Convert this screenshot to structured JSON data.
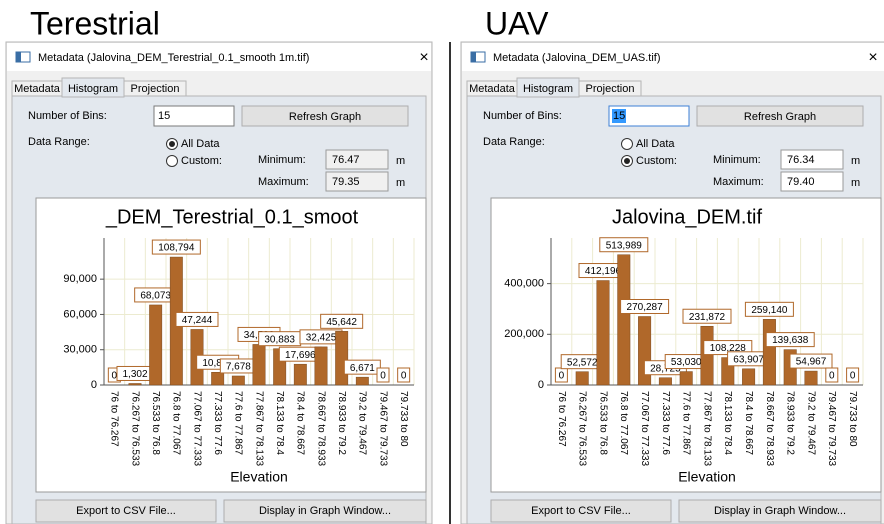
{
  "panels": [
    {
      "heading": "Terestrial",
      "window_title": "Metadata (Jalovina_DEM_Terestrial_0.1_smooth 1m.tif)",
      "close": "×",
      "tabs": [
        "Metadata",
        "Histogram",
        "Projection"
      ],
      "active_tab": 1,
      "bins_label": "Number of Bins:",
      "bins": "15",
      "refresh": "Refresh Graph",
      "range_label": "Data Range:",
      "range_options": [
        "All Data",
        "Custom:"
      ],
      "range_selected": 0,
      "minimum_label": "Minimum:",
      "minimum": "76.47",
      "maximum_label": "Maximum:",
      "maximum": "79.35",
      "unit": "m",
      "chart_data": {
        "type": "bar",
        "title": "_DEM_Terestrial_0.1_smoot",
        "xlabel": "Elevation",
        "color": "#b0682a",
        "categories": [
          "76 to 76.267",
          "76.267 to 76.533",
          "76.533 to 76.8",
          "76.8 to 77.067",
          "77.067 to 77.333",
          "77.333 to 77.6",
          "77.6 to 77.867",
          "77.867 to 78.133",
          "78.133 to 78.4",
          "78.4 to 78.667",
          "78.667 to 78.933",
          "78.933 to 79.2",
          "79.2 to 79.467",
          "79.467 to 79.733",
          "79.733 to 80"
        ],
        "values": [
          0,
          1302,
          68073,
          108794,
          47244,
          10850,
          7678,
          34500,
          30883,
          17696,
          32425,
          45642,
          6671,
          0,
          0
        ],
        "value_labels": [
          "0",
          "1,302",
          "68,073",
          "108,794",
          "47,244",
          "10,850",
          "7,678",
          "34,500",
          "30,883",
          "17,696",
          "32,425",
          "45,642",
          "6,671",
          "0",
          "0"
        ],
        "ylim": [
          0,
          125000
        ],
        "yticks": [
          0,
          {
            "value": 30000,
            "label": "30,000"
          },
          {
            "value": 60000,
            "label": "60,000"
          },
          {
            "value": 90000,
            "label": "90,000"
          }
        ],
        "grid": true
      },
      "buttons": [
        "Export to CSV File...",
        "Display in Graph Window..."
      ]
    },
    {
      "heading": "UAV",
      "window_title": "Metadata (Jalovina_DEM_UAS.tif)",
      "close": "×",
      "tabs": [
        "Metadata",
        "Histogram",
        "Projection"
      ],
      "active_tab": 1,
      "bins_label": "Number of Bins:",
      "bins": "15",
      "refresh": "Refresh Graph",
      "range_label": "Data Range:",
      "range_options": [
        "All Data",
        "Custom:"
      ],
      "range_selected": 1,
      "minimum_label": "Minimum:",
      "minimum": "76.34",
      "maximum_label": "Maximum:",
      "maximum": "79.40",
      "unit": "m",
      "chart_data": {
        "type": "bar",
        "title": "Jalovina_DEM.tif",
        "xlabel": "Elevation",
        "color": "#b0682a",
        "categories": [
          "76 to 76.267",
          "76.267 to 76.533",
          "76.533 to 76.8",
          "76.8 to 77.067",
          "77.067 to 77.333",
          "77.333 to 77.6",
          "77.6 to 77.867",
          "77.867 to 78.133",
          "78.133 to 78.4",
          "78.4 to 78.667",
          "78.667 to 78.933",
          "78.933 to 79.2",
          "79.2 to 79.467",
          "79.467 to 79.733",
          "79.733 to 80"
        ],
        "values": [
          0,
          52572,
          412196,
          513989,
          270287,
          28725,
          53030,
          231872,
          108228,
          63907,
          259140,
          139638,
          54967,
          0,
          0
        ],
        "value_labels": [
          "0",
          "52,572",
          "412,196",
          "513,989",
          "270,287",
          "28,725",
          "53,030",
          "231,872",
          "108,228",
          "63,907",
          "259,140",
          "139,638",
          "54,967",
          "0",
          "0"
        ],
        "ylim": [
          0,
          580000
        ],
        "yticks": [
          0,
          {
            "value": 200000,
            "label": "200,000"
          },
          {
            "value": 400000,
            "label": "400,000"
          }
        ],
        "grid": true
      },
      "buttons": [
        "Export to CSV File...",
        "Display in Graph Window..."
      ]
    }
  ]
}
